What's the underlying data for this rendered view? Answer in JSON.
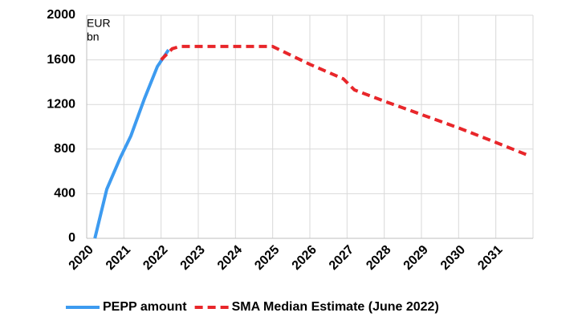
{
  "chart_data": {
    "type": "line",
    "y_unit": [
      "EUR",
      "bn"
    ],
    "xlim": [
      2020,
      2032
    ],
    "xticks": [
      2020,
      2021,
      2022,
      2023,
      2024,
      2025,
      2026,
      2027,
      2028,
      2029,
      2030,
      2031
    ],
    "ylim": [
      0,
      2000
    ],
    "yticks": [
      0,
      400,
      800,
      1200,
      1600,
      2000
    ],
    "grid": true,
    "legend": "bottom",
    "series": [
      {
        "name": "PEPP amount",
        "color": "#3d9bf0",
        "dashed": false,
        "x": [
          2020.22,
          2020.54,
          2020.9,
          2021.19,
          2021.55,
          2021.9,
          2022.2
        ],
        "values": [
          0,
          440,
          720,
          920,
          1250,
          1540,
          1690
        ]
      },
      {
        "name": "SMA Median Estimate (June 2022)",
        "color": "#e8262a",
        "dashed": true,
        "x": [
          2022.0,
          2022.3,
          2022.5,
          2025.0,
          2026.0,
          2026.9,
          2027.2,
          2028.0,
          2029.0,
          2030.0,
          2031.0,
          2031.9
        ],
        "values": [
          1600,
          1700,
          1720,
          1720,
          1560,
          1430,
          1330,
          1230,
          1110,
          990,
          860,
          740
        ]
      }
    ]
  }
}
